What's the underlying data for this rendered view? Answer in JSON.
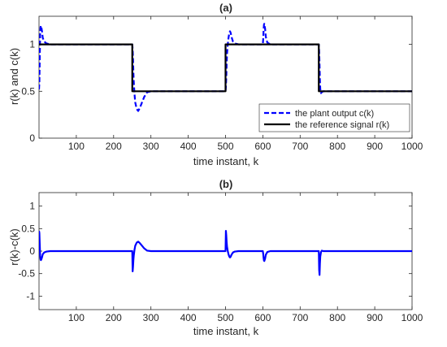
{
  "chart_data": [
    {
      "type": "line",
      "title": "(a)",
      "xlabel": "time instant, k",
      "ylabel": "r(k) and c(k)",
      "xlim": [
        0,
        1000
      ],
      "ylim": [
        0,
        1.3
      ],
      "xticks": [
        100,
        200,
        300,
        400,
        500,
        600,
        700,
        800,
        900,
        1000
      ],
      "yticks": [
        0,
        0.5,
        1
      ],
      "grid": false,
      "legend_position": "right",
      "series": [
        {
          "name": "the plant output c(k)",
          "style": "dashed",
          "color": "#0000ff",
          "x": [
            0,
            1,
            2,
            3,
            4,
            5,
            6,
            8,
            10,
            14,
            20,
            30,
            60,
            120,
            200,
            249,
            250,
            251,
            252,
            253,
            254,
            256,
            258,
            262,
            266,
            270,
            276,
            282,
            290,
            300,
            310,
            320,
            350,
            400,
            499,
            500,
            501,
            502,
            503,
            504,
            506,
            508,
            510,
            512,
            514,
            516,
            520,
            525,
            535,
            560,
            599,
            600,
            601,
            602,
            603,
            604,
            606,
            608,
            612,
            620,
            650,
            700,
            749,
            750,
            751,
            752,
            753,
            754,
            756,
            758,
            762,
            770,
            800,
            1000
          ],
          "values": [
            0.52,
            0.6,
            0.85,
            1.1,
            1.18,
            1.2,
            1.19,
            1.14,
            1.07,
            1.03,
            1.01,
            1.0,
            1.0,
            1.0,
            1.0,
            1.0,
            1.0,
            0.95,
            0.85,
            0.7,
            0.6,
            0.47,
            0.38,
            0.31,
            0.29,
            0.32,
            0.38,
            0.44,
            0.49,
            0.5,
            0.5,
            0.5,
            0.5,
            0.5,
            0.5,
            0.5,
            0.55,
            0.65,
            0.8,
            0.9,
            1.0,
            1.07,
            1.12,
            1.14,
            1.12,
            1.08,
            1.03,
            1.01,
            1.0,
            1.0,
            1.0,
            1.0,
            1.06,
            1.15,
            1.21,
            1.22,
            1.17,
            1.08,
            1.02,
            1.0,
            1.0,
            1.0,
            1.0,
            1.0,
            0.92,
            0.78,
            0.62,
            0.52,
            0.48,
            0.49,
            0.5,
            0.5,
            0.5,
            0.5
          ]
        },
        {
          "name": "the reference signal r(k)",
          "style": "solid",
          "color": "#000000",
          "x": [
            0,
            250,
            250,
            500,
            500,
            750,
            750,
            1000
          ],
          "values": [
            1.0,
            1.0,
            0.5,
            0.5,
            1.0,
            1.0,
            0.5,
            0.5
          ]
        }
      ]
    },
    {
      "type": "line",
      "title": "(b)",
      "xlabel": "time instant, k",
      "ylabel": "r(k)-c(k)",
      "xlim": [
        0,
        1000
      ],
      "ylim": [
        -1.3,
        1.3
      ],
      "xticks": [
        100,
        200,
        300,
        400,
        500,
        600,
        700,
        800,
        900,
        1000
      ],
      "yticks": [
        -1,
        -0.5,
        0,
        0.5,
        1
      ],
      "grid": false,
      "series": [
        {
          "style": "solid",
          "color": "#0000ff",
          "x": [
            0,
            1,
            2,
            3,
            4,
            5,
            6,
            8,
            10,
            14,
            20,
            30,
            60,
            200,
            249,
            250,
            251,
            252,
            253,
            254,
            256,
            258,
            262,
            266,
            270,
            276,
            282,
            290,
            300,
            310,
            350,
            499,
            500,
            501,
            502,
            503,
            504,
            506,
            508,
            510,
            512,
            514,
            516,
            520,
            525,
            535,
            560,
            599,
            600,
            601,
            602,
            603,
            604,
            606,
            608,
            612,
            620,
            700,
            749,
            750,
            751,
            752,
            753,
            754,
            756,
            758,
            762,
            770,
            800,
            1000
          ],
          "values": [
            0.45,
            0.4,
            0.15,
            -0.1,
            -0.18,
            -0.2,
            -0.19,
            -0.14,
            -0.07,
            -0.03,
            -0.01,
            0.0,
            0.0,
            0.0,
            0.0,
            0.0,
            -0.45,
            -0.35,
            -0.2,
            -0.1,
            0.03,
            0.12,
            0.19,
            0.21,
            0.18,
            0.12,
            0.06,
            0.01,
            0.0,
            0.0,
            0.0,
            0.0,
            0.0,
            0.45,
            0.35,
            0.2,
            0.1,
            0.0,
            -0.07,
            -0.12,
            -0.14,
            -0.12,
            -0.08,
            -0.03,
            -0.01,
            0.0,
            0.0,
            0.0,
            0.0,
            -0.06,
            -0.15,
            -0.21,
            -0.22,
            -0.17,
            -0.08,
            -0.02,
            0.0,
            0.0,
            0.0,
            0.0,
            -0.42,
            -0.53,
            -0.28,
            -0.12,
            -0.02,
            0.01,
            0.0,
            0.0,
            0.0,
            0.0
          ]
        }
      ]
    }
  ]
}
